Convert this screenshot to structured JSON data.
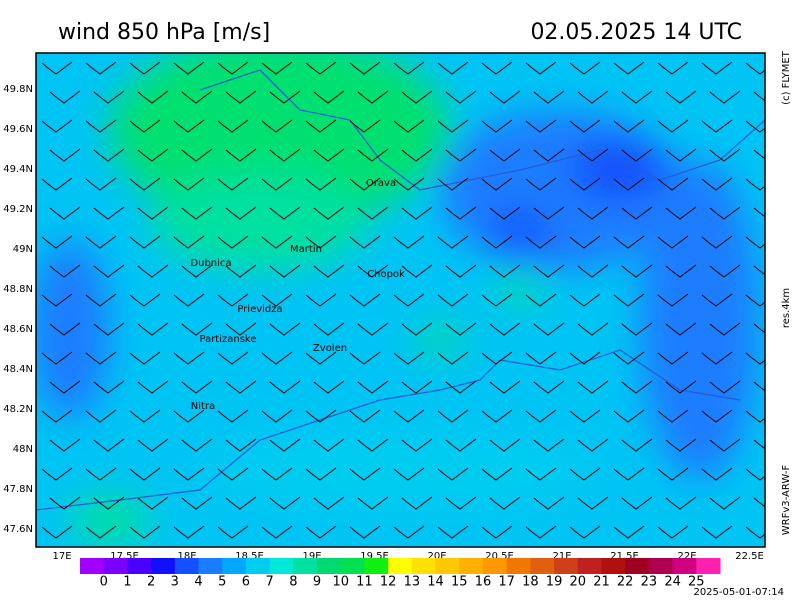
{
  "header": {
    "title": "wind 850 hPa [m/s]",
    "date": "02.05.2025   14 UTC"
  },
  "side": {
    "copyright": "(c) FLYMET",
    "resolution": "res.4km",
    "model": "WRFv3-ARW-F"
  },
  "footer": {
    "timestamp": "2025-05-01-07:14"
  },
  "latitude_labels": [
    "49.8N",
    "49.6N",
    "49.4N",
    "49.2N",
    "49N",
    "48.8N",
    "48.6N",
    "48.4N",
    "48.2N",
    "48N",
    "47.8N",
    "47.6N"
  ],
  "longitude_labels": [
    "17E",
    "17.5E",
    "18E",
    "18.5E",
    "19E",
    "19.5E",
    "20E",
    "20.5E",
    "21E",
    "21.5E",
    "22E",
    "22.5E"
  ],
  "places": [
    {
      "name": "Orava",
      "x": 381,
      "y": 183
    },
    {
      "name": "Martin",
      "x": 306,
      "y": 249
    },
    {
      "name": "Dubnica",
      "x": 211,
      "y": 263
    },
    {
      "name": "Chopok",
      "x": 386,
      "y": 274
    },
    {
      "name": "Prievidza",
      "x": 260,
      "y": 309
    },
    {
      "name": "Partizanske",
      "x": 228,
      "y": 339
    },
    {
      "name": "Zvolen",
      "x": 330,
      "y": 348
    },
    {
      "name": "Nitra",
      "x": 203,
      "y": 406
    }
  ],
  "colorbar": {
    "labels": [
      0,
      1,
      2,
      3,
      4,
      5,
      6,
      7,
      8,
      9,
      10,
      11,
      12,
      13,
      14,
      15,
      16,
      17,
      18,
      19,
      20,
      21,
      22,
      23,
      24,
      25
    ],
    "colors": [
      "#a000ff",
      "#7a00ff",
      "#4a00ff",
      "#1010ff",
      "#1450ff",
      "#1a7dff",
      "#00a8ff",
      "#00ccf0",
      "#00e8d8",
      "#00e0a0",
      "#00d870",
      "#00e050",
      "#10f010",
      "#ffff00",
      "#ffe000",
      "#ffc800",
      "#ffb000",
      "#ff9800",
      "#f07800",
      "#e06010",
      "#d04018",
      "#c02020",
      "#b01010",
      "#a00020",
      "#b00050",
      "#d00080",
      "#ff20b0"
    ]
  }
}
